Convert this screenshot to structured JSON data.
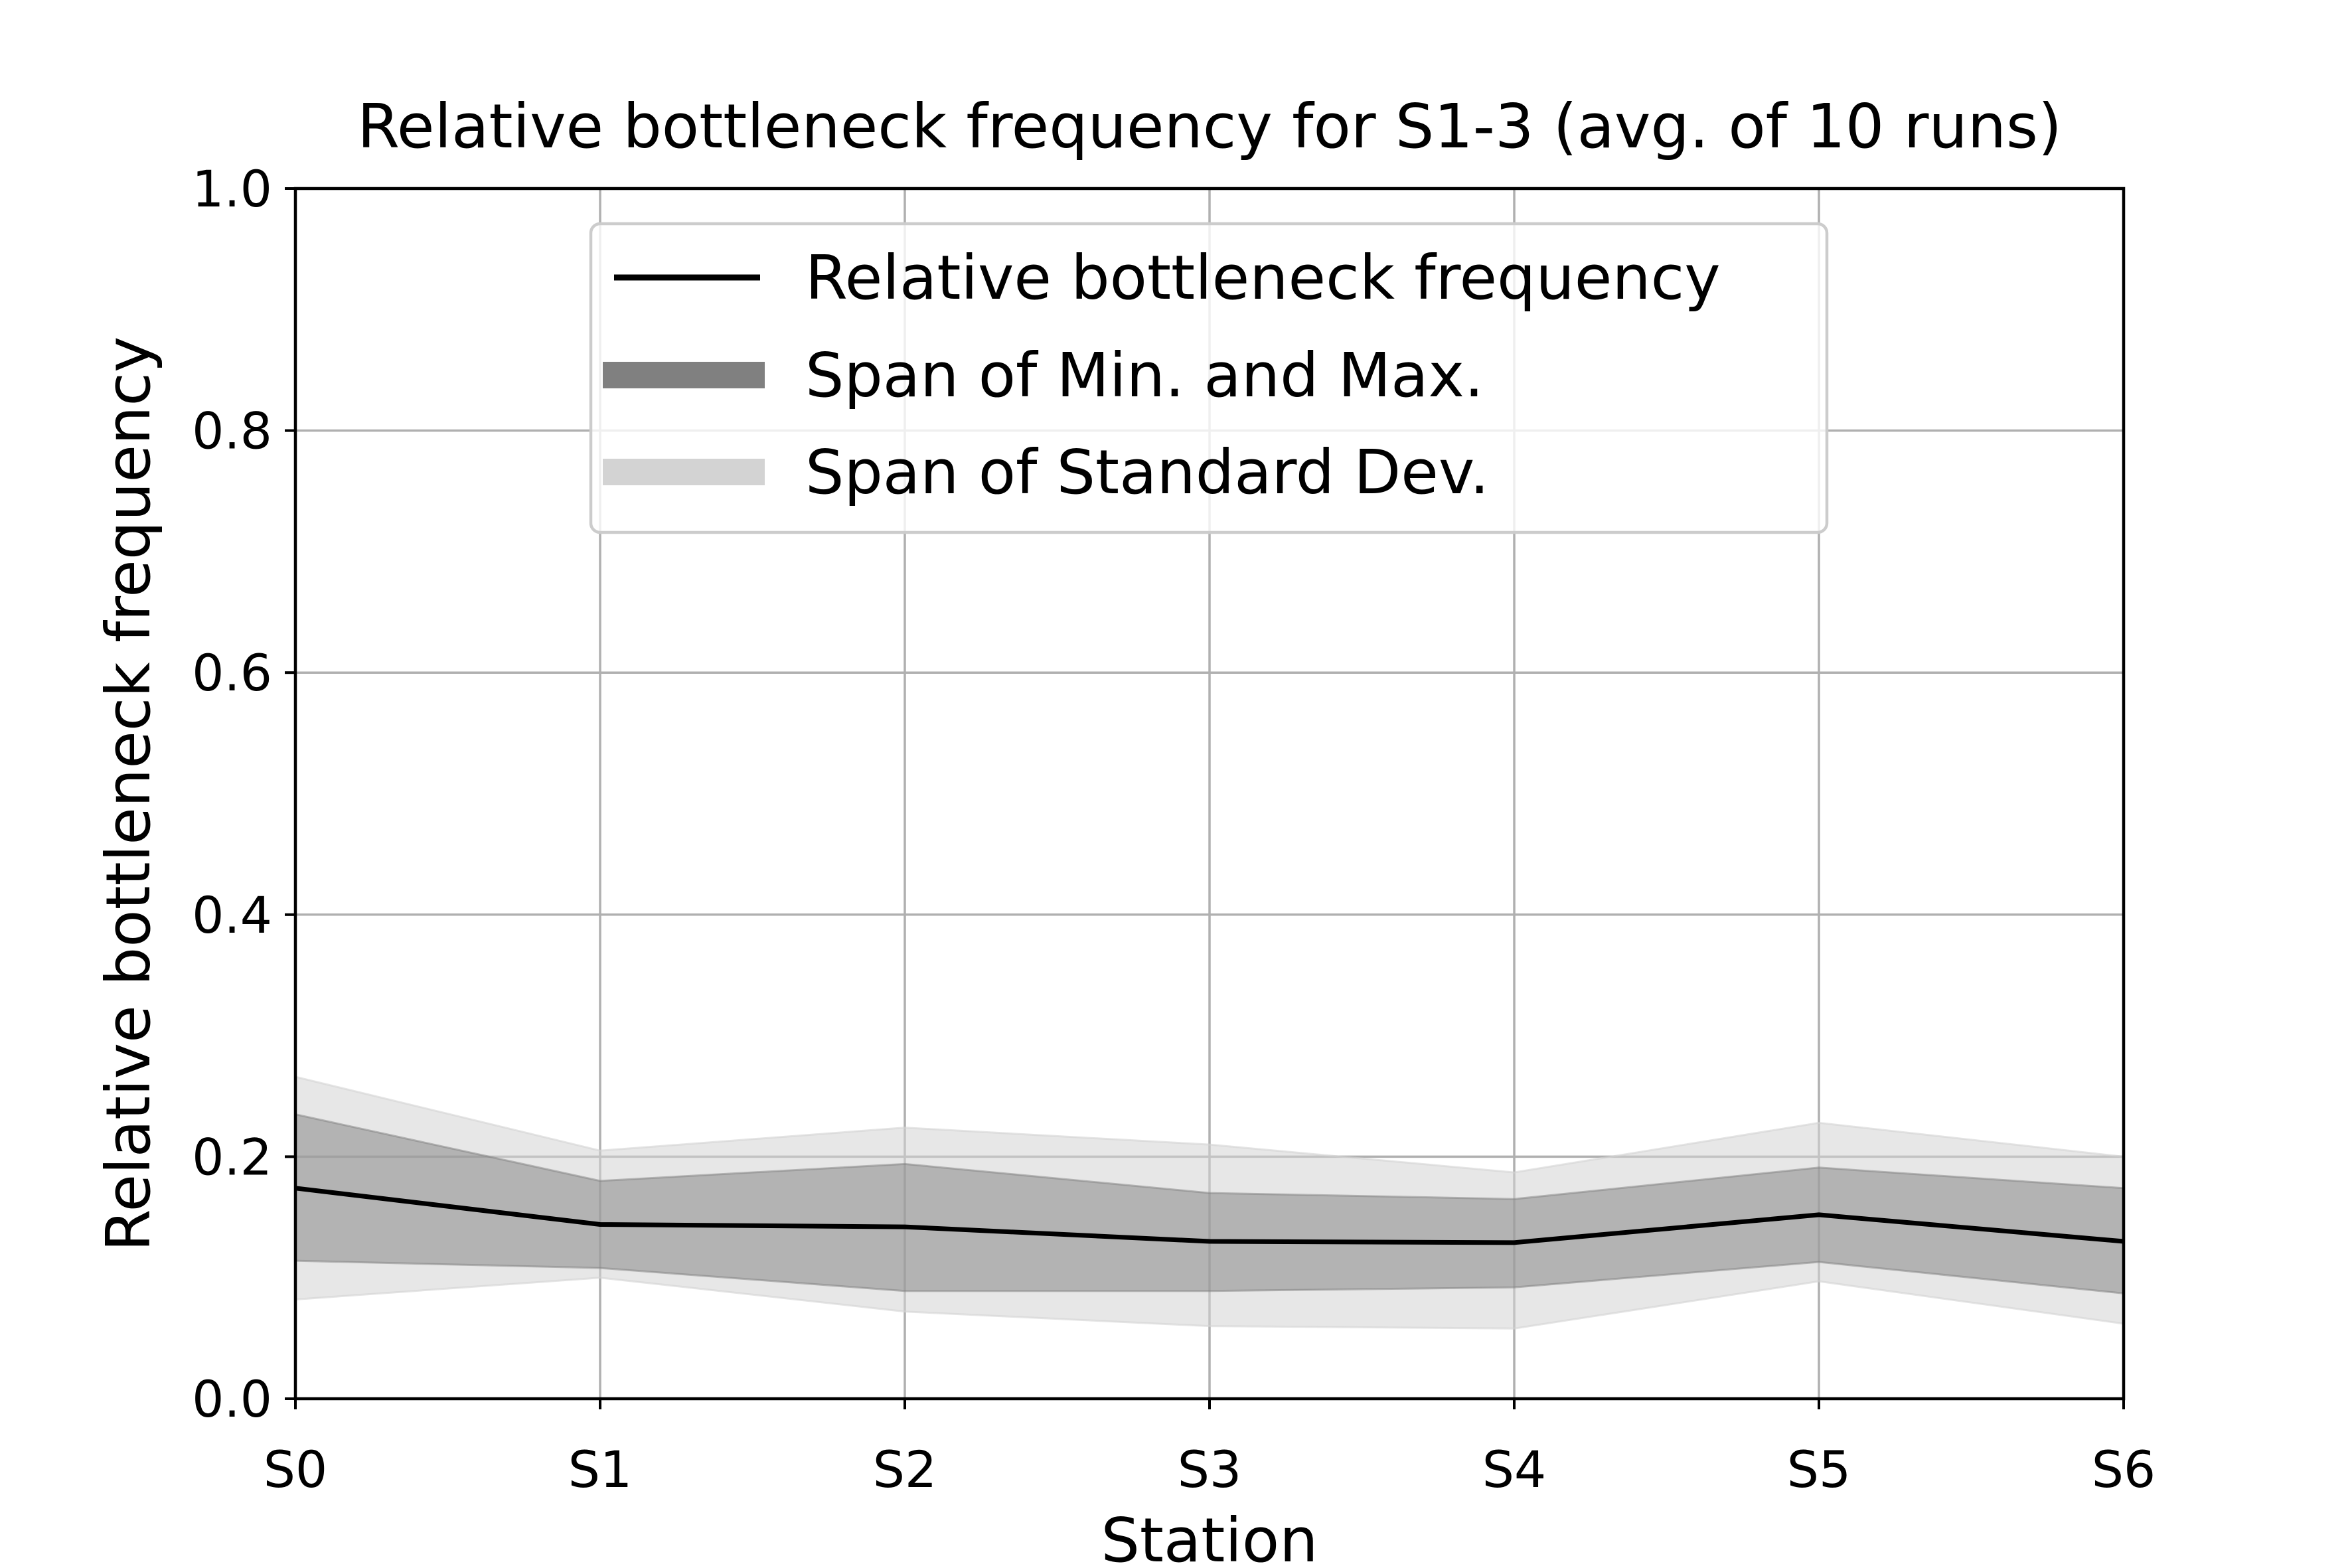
{
  "chart_data": {
    "type": "line",
    "title": "Relative bottleneck frequency for S1-3 (avg. of 10 runs)",
    "xlabel": "Station",
    "ylabel": "Relative bottleneck frequency",
    "categories": [
      "S0",
      "S1",
      "S2",
      "S3",
      "S4",
      "S5",
      "S6"
    ],
    "ylim": [
      0,
      1.0
    ],
    "yticks": [
      "0.0",
      "0.2",
      "0.4",
      "0.6",
      "0.8",
      "1.0"
    ],
    "grid": true,
    "legend_position": "top-center",
    "series": [
      {
        "name": "Relative bottleneck frequency",
        "kind": "line",
        "color": "#000000",
        "values": [
          0.174,
          0.144,
          0.142,
          0.13,
          0.129,
          0.152,
          0.13
        ]
      },
      {
        "name": "Span of Min. and Max.",
        "kind": "band",
        "color": "#808080",
        "lower": [
          0.114,
          0.108,
          0.089,
          0.089,
          0.092,
          0.113,
          0.087
        ],
        "upper": [
          0.235,
          0.18,
          0.194,
          0.17,
          0.165,
          0.191,
          0.174
        ]
      },
      {
        "name": "Span of Standard Dev.",
        "kind": "band",
        "color": "#d3d3d3",
        "lower": [
          0.082,
          0.1,
          0.072,
          0.06,
          0.058,
          0.097,
          0.062
        ],
        "upper": [
          0.266,
          0.205,
          0.224,
          0.21,
          0.187,
          0.228,
          0.2
        ]
      }
    ]
  }
}
